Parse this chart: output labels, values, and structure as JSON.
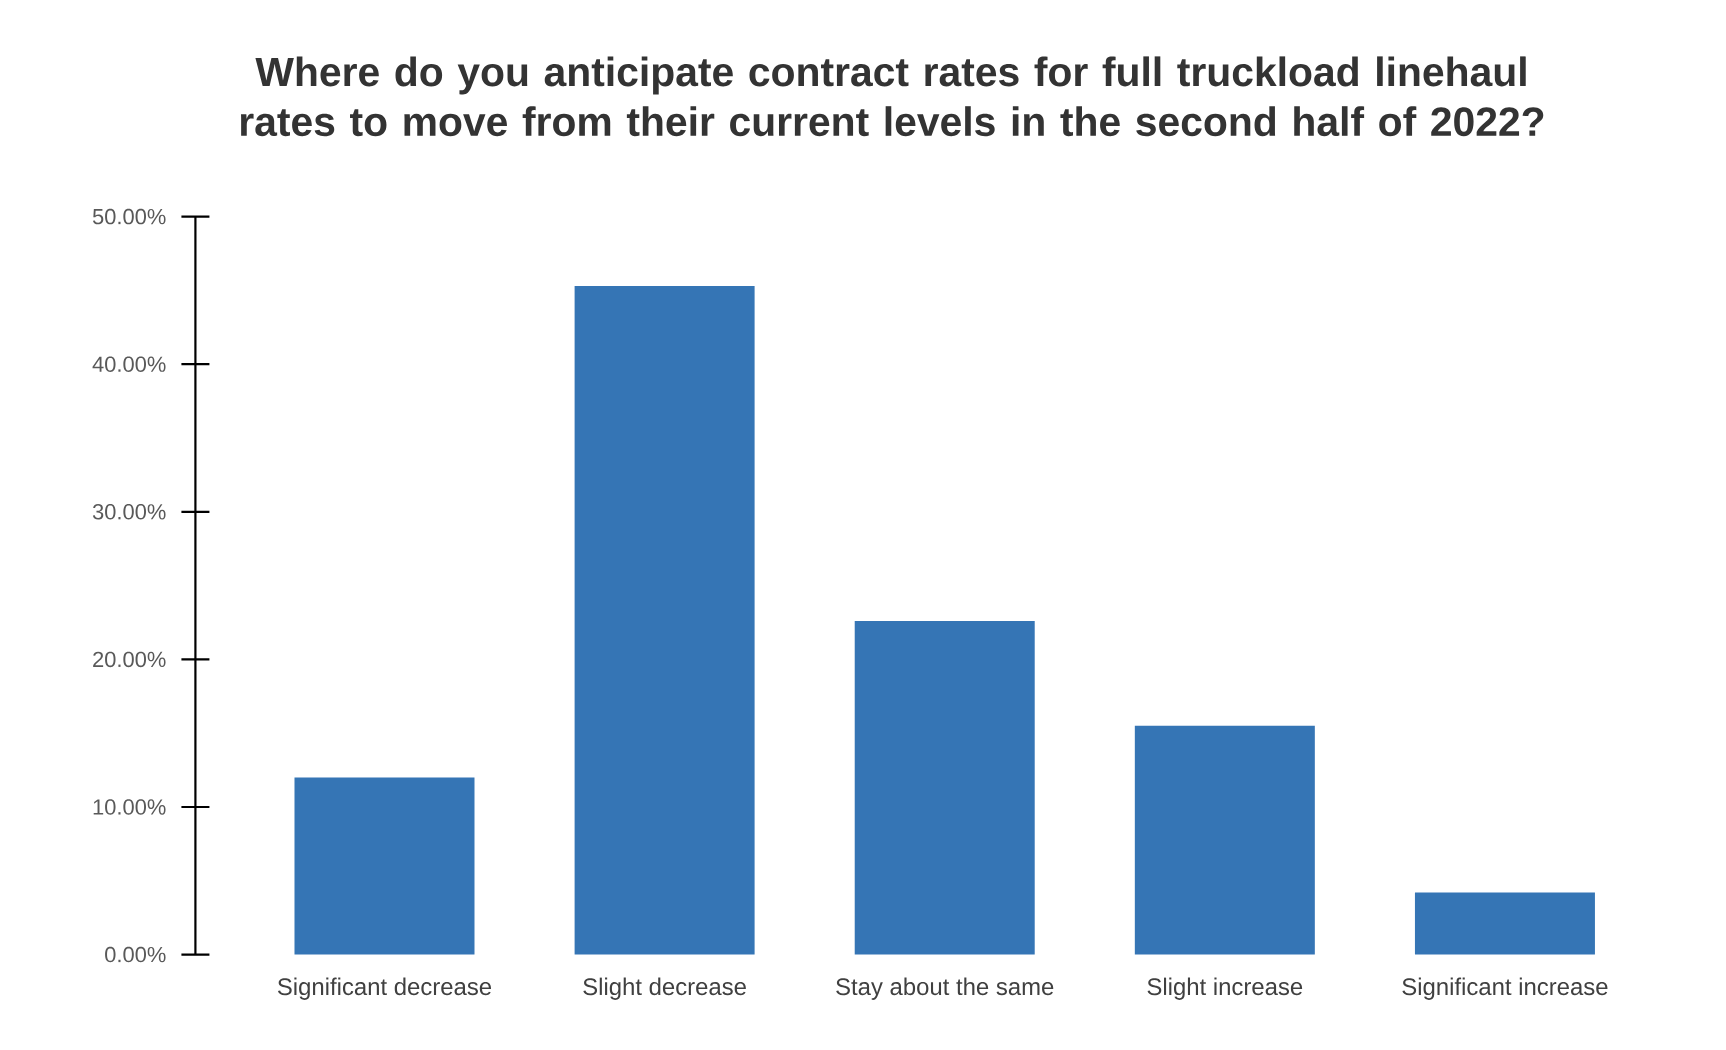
{
  "chart_data": {
    "type": "bar",
    "title": "Where do you anticipate contract rates for full truckload linehaul rates to move from their current levels in the second half of 2022?",
    "categories": [
      "Significant decrease",
      "Slight decrease",
      "Stay about the same",
      "Slight increase",
      "Significant increase"
    ],
    "values": [
      12.0,
      45.3,
      22.6,
      15.5,
      4.2
    ],
    "color": "#3575b5",
    "ylim": [
      0,
      50
    ],
    "yticks": [
      {
        "value": 0,
        "label": "0.00%"
      },
      {
        "value": 10,
        "label": "10.00%"
      },
      {
        "value": 20,
        "label": "20.00%"
      },
      {
        "value": 30,
        "label": "30.00%"
      },
      {
        "value": 40,
        "label": "40.00%"
      },
      {
        "value": 50,
        "label": "50.00%"
      }
    ]
  }
}
